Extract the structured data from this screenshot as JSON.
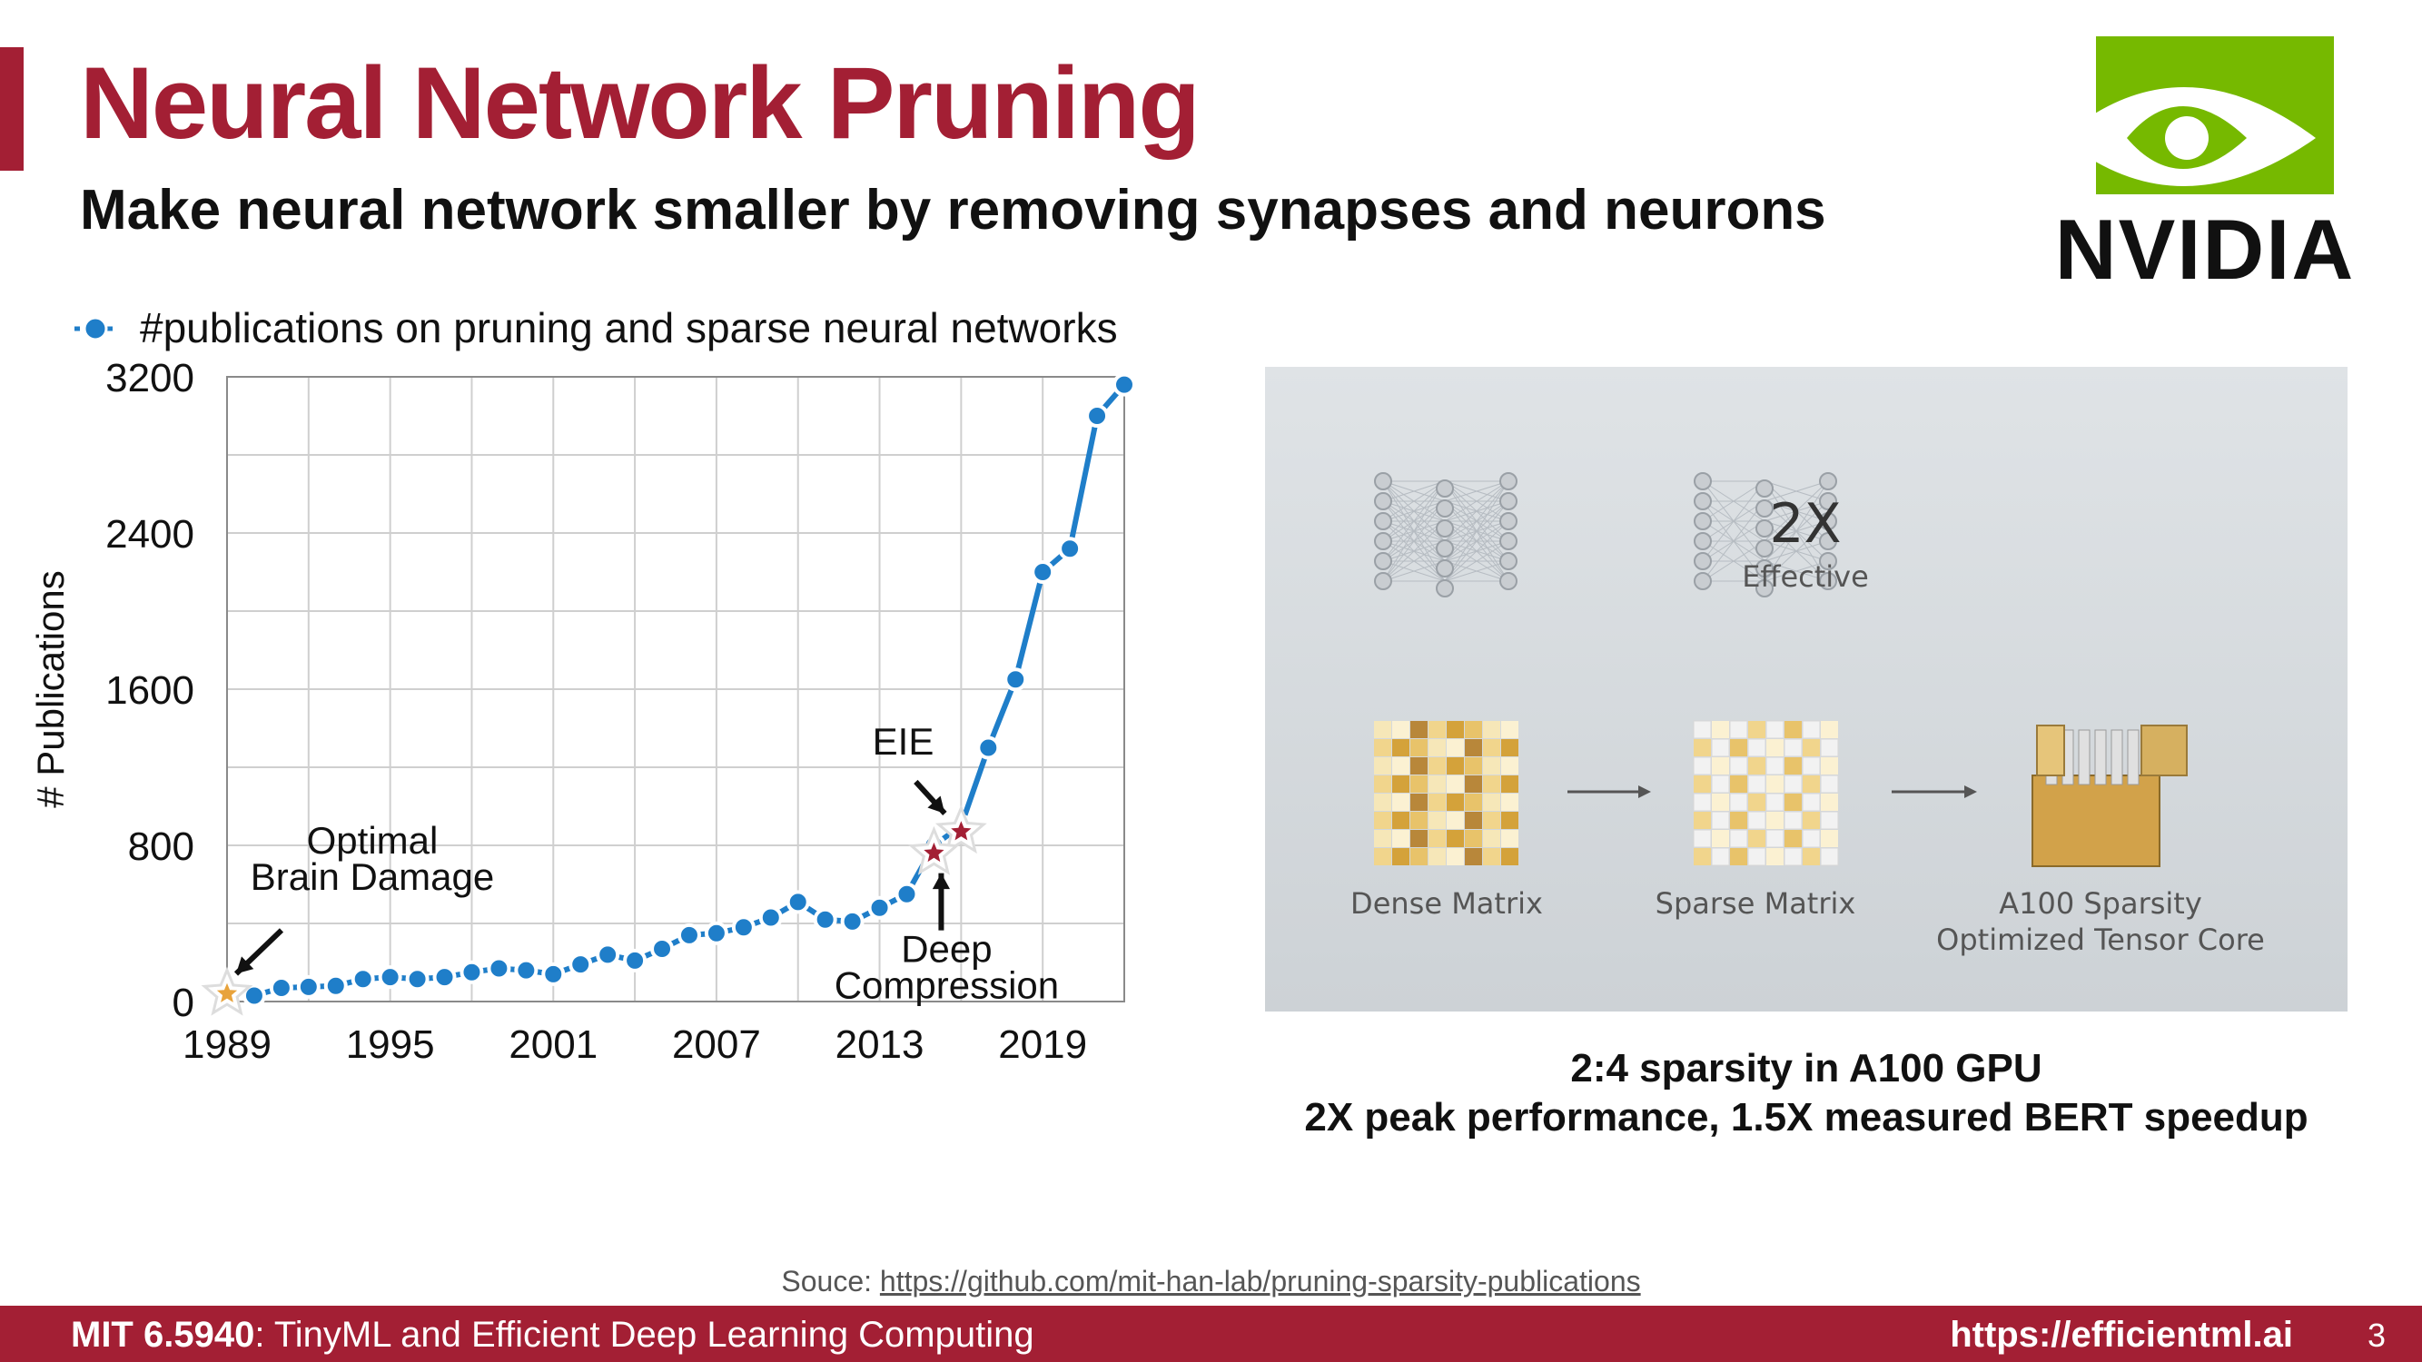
{
  "slide": {
    "title": "Neural Network Pruning",
    "subtitle": "Make neural network smaller by removing synapses and neurons",
    "logo_text": "NVIDIA",
    "source_prefix": "Souce: ",
    "source_link": "https://github.com/mit-han-lab/pruning-sparsity-publications",
    "footer_course": "MIT 6.5940",
    "footer_course_title": ": TinyML and Efficient Deep Learning Computing",
    "footer_url": "https://efficientml.ai",
    "page_number": "3"
  },
  "colors": {
    "accent": "#a31f34",
    "series": "#1f7ec9",
    "nvidia_green": "#76b900",
    "star_red": "#a31f34",
    "star_gold": "#e8a33c"
  },
  "chart_data": {
    "type": "line",
    "legend": "#publications on pruning and sparse neural networks",
    "legend_position": "top-left",
    "xlabel": "",
    "ylabel": "# Publications",
    "xlim": [
      1989,
      2022
    ],
    "ylim": [
      0,
      3200
    ],
    "xticks": [
      "1989",
      "1995",
      "2001",
      "2007",
      "2013",
      "2019"
    ],
    "yticks": [
      "0",
      "800",
      "1600",
      "2400",
      "3200"
    ],
    "grid": true,
    "series": [
      {
        "name": "#publications on pruning and sparse neural networks",
        "x": [
          1990,
          1991,
          1992,
          1993,
          1994,
          1995,
          1996,
          1997,
          1998,
          1999,
          2000,
          2001,
          2002,
          2003,
          2004,
          2005,
          2006,
          2007,
          2008,
          2009,
          2010,
          2011,
          2012,
          2013,
          2014,
          2015,
          2016,
          2017,
          2018,
          2019,
          2020,
          2021,
          2022
        ],
        "y": [
          30,
          70,
          75,
          80,
          115,
          125,
          115,
          125,
          150,
          170,
          160,
          140,
          190,
          240,
          210,
          270,
          340,
          350,
          380,
          430,
          510,
          420,
          410,
          480,
          550,
          800,
          900,
          1300,
          1650,
          2200,
          2320,
          3000,
          3160
        ]
      }
    ],
    "annotations": [
      {
        "text_lines": [
          "Optimal",
          "Brain Damage"
        ],
        "x": 1989,
        "y": 40,
        "marker": "star",
        "color": "gold",
        "arrow": "down-left"
      },
      {
        "text_lines": [
          "EIE"
        ],
        "x": 2016,
        "y": 870,
        "marker": "star",
        "color": "red",
        "arrow": "down-right"
      },
      {
        "text_lines": [
          "Deep",
          "Compression"
        ],
        "x": 2015,
        "y": 760,
        "marker": "star",
        "color": "red",
        "arrow": "up"
      }
    ]
  },
  "figure": {
    "label_2x": "2X",
    "label_effective": "Effective",
    "label_dense": "Dense Matrix",
    "label_sparse": "Sparse Matrix",
    "label_core_line1": "A100 Sparsity",
    "label_core_line2": "Optimized Tensor Core",
    "caption_line1": "2:4 sparsity in A100 GPU",
    "caption_line2": "2X peak performance, 1.5X measured BERT speedup"
  }
}
